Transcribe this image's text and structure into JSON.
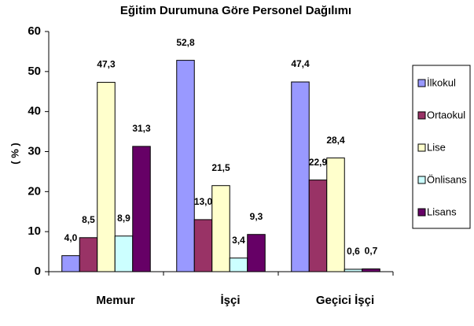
{
  "chart_data": {
    "type": "bar",
    "title": "Eğitim Durumuna Göre Personel Dağılımı",
    "y_label": "( % )",
    "categories": [
      "Memur",
      "İşçi",
      "Geçici İşçi"
    ],
    "series": [
      {
        "name": "İlkokul",
        "color": "#9999ff",
        "values": [
          4.0,
          52.8,
          47.4
        ],
        "value_labels": [
          "4,0",
          "52,8",
          "47,4"
        ]
      },
      {
        "name": "Ortaokul",
        "color": "#993366",
        "values": [
          8.5,
          13.0,
          22.9
        ],
        "value_labels": [
          "8,5",
          "13,0",
          "22,9"
        ]
      },
      {
        "name": "Lise",
        "color": "#ffffcc",
        "values": [
          47.3,
          21.5,
          28.4
        ],
        "value_labels": [
          "47,3",
          "21,5",
          "28,4"
        ]
      },
      {
        "name": "Önlisans",
        "color": "#ccffff",
        "values": [
          8.9,
          3.4,
          0.6
        ],
        "value_labels": [
          "8,9",
          "3,4",
          "0,6"
        ]
      },
      {
        "name": "Lisans",
        "color": "#660066",
        "values": [
          31.3,
          9.3,
          0.7
        ],
        "value_labels": [
          "31,3",
          "9,3",
          "0,7"
        ]
      }
    ],
    "ylim": [
      0,
      60
    ],
    "yticks": [
      0,
      10,
      20,
      30,
      40,
      50,
      60
    ],
    "grid": false,
    "legend": "right"
  }
}
